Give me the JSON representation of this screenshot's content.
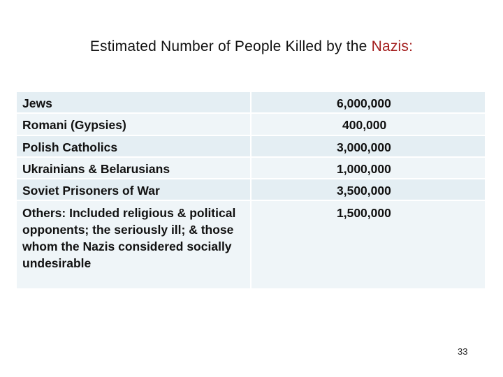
{
  "slide": {
    "title_prefix": "Estimated Number of People Killed by the ",
    "title_highlight": "Nazis:",
    "title_highlight_color": "#a31c1c",
    "page_number": "33"
  },
  "table": {
    "rows": [
      {
        "group": "Jews",
        "count": "6,000,000"
      },
      {
        "group": "Romani (Gypsies)",
        "count": "400,000"
      },
      {
        "group": "Polish Catholics",
        "count": "3,000,000"
      },
      {
        "group": "Ukrainians & Belarusians",
        "count": "1,000,000"
      },
      {
        "group": "Soviet Prisoners of War",
        "count": "3,500,000"
      },
      {
        "group": "Others: Included religious & political opponents; the seriously ill; & those whom the Nazis considered socially undesirable",
        "count": "1,500,000"
      }
    ]
  }
}
